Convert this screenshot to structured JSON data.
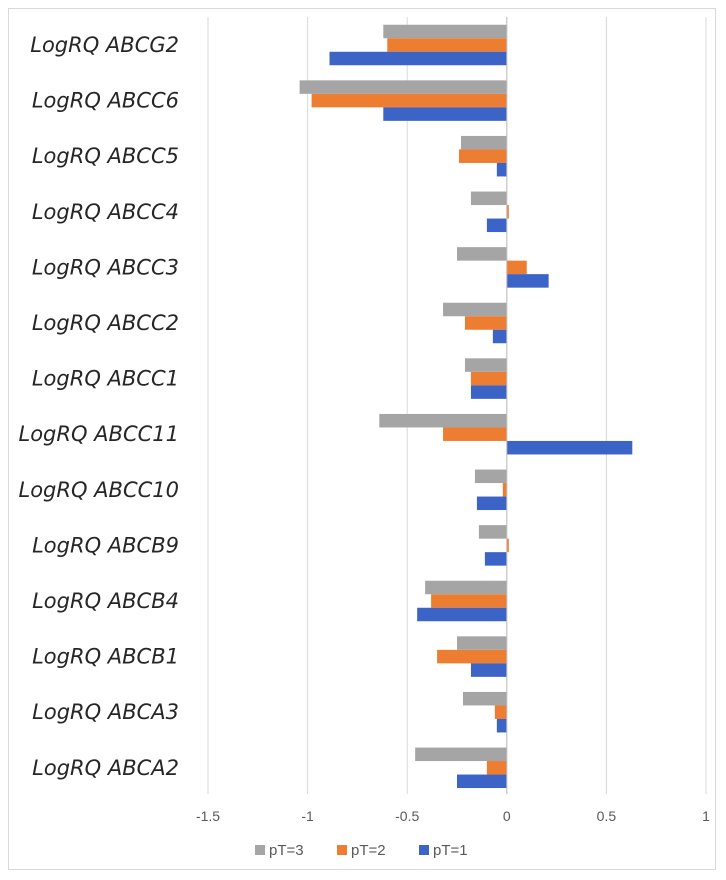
{
  "chart_data": {
    "type": "bar",
    "orientation": "horizontal",
    "categories": [
      "LogRQ ABCG2",
      "LogRQ ABCC6",
      "LogRQ ABCC5",
      "LogRQ ABCC4",
      "LogRQ ABCC3",
      "LogRQ ABCC2",
      "LogRQ ABCC1",
      "LogRQ ABCC11",
      "LogRQ ABCC10",
      "LogRQ ABCB9",
      "LogRQ ABCB4",
      "LogRQ ABCB1",
      "LogRQ ABCA3",
      "LogRQ ABCA2"
    ],
    "series": [
      {
        "name": "pT=3",
        "color": "#a5a5a5",
        "values": [
          -0.62,
          -1.04,
          -0.23,
          -0.18,
          -0.25,
          -0.32,
          -0.21,
          -0.64,
          -0.16,
          -0.14,
          -0.41,
          -0.25,
          -0.22,
          -0.46
        ]
      },
      {
        "name": "pT=2",
        "color": "#ed7d31",
        "values": [
          -0.6,
          -0.98,
          -0.24,
          0.01,
          0.1,
          -0.21,
          -0.18,
          -0.32,
          -0.02,
          0.01,
          -0.38,
          -0.35,
          -0.06,
          -0.1
        ]
      },
      {
        "name": "pT=1",
        "color": "#3c63c6",
        "values": [
          -0.89,
          -0.62,
          -0.05,
          -0.1,
          0.21,
          -0.07,
          -0.18,
          0.63,
          -0.15,
          -0.11,
          -0.45,
          -0.18,
          -0.05,
          -0.25
        ]
      }
    ],
    "xlim": [
      -1.5,
      1
    ],
    "xticks": [
      -1.5,
      -1,
      -0.5,
      0,
      0.5,
      1
    ],
    "xtick_labels": [
      "-1.5",
      "-1",
      "-0.5",
      "0",
      "0.5",
      "1"
    ],
    "grid": "vertical",
    "legend_position": "bottom",
    "legend_order": [
      "pT=3",
      "pT=2",
      "pT=1"
    ]
  }
}
